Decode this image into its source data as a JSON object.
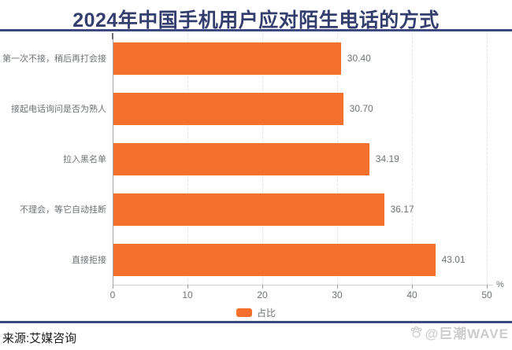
{
  "page": {
    "title": "2024年中国手机用户应对陌生电话的方式",
    "source_label": "来源:艾媒咨询",
    "watermark_text": "@巨潮WAVE"
  },
  "colors": {
    "title_navy": "#333e6e",
    "rule_navy": "#3d4a80",
    "bar_orange": "#f4702c",
    "label_gray": "#6e7176",
    "gridline_gray": "#e4e4e6",
    "watermark_gray": "#cdcdcd"
  },
  "chart_data": {
    "type": "bar",
    "orientation": "horizontal",
    "title": "2024年中国手机用户应对陌生电话的方式",
    "categories": [
      "第一次不接，稍后再打会接",
      "接起电话询问是否为熟人",
      "拉入黑名单",
      "不理会，等它自动挂断",
      "直接拒接"
    ],
    "values": [
      30.4,
      30.7,
      34.19,
      36.17,
      43.01
    ],
    "value_labels": [
      "30.40",
      "30.70",
      "34.19",
      "36.17",
      "43.01"
    ],
    "series_name": "占比",
    "x_ticks": [
      0,
      10,
      20,
      30,
      40,
      50
    ],
    "xlim": [
      0,
      50
    ],
    "unit": "%",
    "xlabel": "",
    "ylabel": "",
    "grid": "vertical-dashed",
    "legend": {
      "label": "占比",
      "position": "bottom"
    }
  }
}
